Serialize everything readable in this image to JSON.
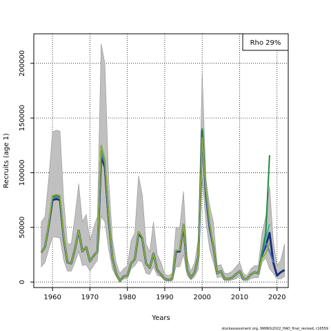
{
  "chart_data": {
    "type": "line",
    "title": "",
    "xlabel": "Years",
    "ylabel": "Recruits (age 1)",
    "xlim": [
      1955,
      2023
    ],
    "ylim": [
      -5000,
      227000
    ],
    "x_ticks": [
      1960,
      1970,
      1980,
      1990,
      2000,
      2010,
      2020
    ],
    "y_ticks": [
      0,
      50000,
      100000,
      150000,
      200000
    ],
    "grid": true,
    "legend": {
      "position": "top-right",
      "entries": [
        "Rho 29%"
      ]
    },
    "footnote": "stockassessment.org, NWWG2022_HAD_final_revised, r16559",
    "colors": {
      "band": "#c0c0c0",
      "band_edge": "#909090",
      "main_line": "#1c2f7a",
      "retro_blue": "#4f77c8",
      "retro_teal": "#3bb79b",
      "retro_green": "#1f8a3a",
      "retro_olive": "#8aaa3c"
    },
    "band": {
      "x": [
        1957,
        1958,
        1959,
        1960,
        1961,
        1962,
        1963,
        1964,
        1965,
        1966,
        1967,
        1968,
        1969,
        1970,
        1971,
        1972,
        1973,
        1974,
        1975,
        1976,
        1977,
        1978,
        1979,
        1980,
        1981,
        1982,
        1983,
        1984,
        1985,
        1986,
        1987,
        1988,
        1989,
        1990,
        1991,
        1992,
        1993,
        1994,
        1995,
        1996,
        1997,
        1998,
        1999,
        2000,
        2001,
        2002,
        2003,
        2004,
        2005,
        2006,
        2007,
        2008,
        2009,
        2010,
        2011,
        2012,
        2013,
        2014,
        2015,
        2016,
        2017,
        2018,
        2019,
        2020,
        2021,
        2022
      ],
      "upper": [
        55000,
        60000,
        95000,
        137000,
        139000,
        138000,
        75000,
        35000,
        35000,
        60000,
        90000,
        55000,
        62000,
        38000,
        50000,
        60000,
        218000,
        200000,
        95000,
        40000,
        18000,
        8000,
        12000,
        15000,
        38000,
        45000,
        97000,
        80000,
        35000,
        28000,
        55000,
        25000,
        18000,
        7000,
        6000,
        8000,
        50000,
        50000,
        83000,
        22000,
        10000,
        18000,
        40000,
        192000,
        95000,
        70000,
        55000,
        15000,
        16000,
        8000,
        8000,
        10000,
        14000,
        18000,
        8000,
        6000,
        12000,
        15000,
        15000,
        45000,
        60000,
        88000,
        38000,
        15000,
        20000,
        35000
      ],
      "lower": [
        14000,
        18000,
        30000,
        41000,
        41000,
        40000,
        20000,
        10000,
        10000,
        18000,
        28000,
        15000,
        16000,
        10000,
        15000,
        20000,
        60000,
        55000,
        30000,
        12000,
        5000,
        0,
        3000,
        3000,
        12000,
        15000,
        20000,
        18000,
        8000,
        7000,
        14000,
        6000,
        5000,
        1000,
        1000,
        1000,
        14000,
        14000,
        25000,
        6000,
        2000,
        5000,
        12000,
        95000,
        55000,
        30000,
        18000,
        4000,
        5000,
        1000,
        1000,
        2000,
        3000,
        5000,
        1000,
        1000,
        3000,
        4000,
        4000,
        18000,
        22000,
        12000,
        8000,
        3000,
        3000,
        5000
      ]
    },
    "series": [
      {
        "x": [
          1957,
          1958,
          1959,
          1960,
          1961,
          1962,
          1963,
          1964,
          1965,
          1966,
          1967,
          1968,
          1969,
          1970,
          1971,
          1972,
          1973,
          1974,
          1975,
          1976,
          1977,
          1978,
          1979,
          1980,
          1981,
          1982,
          1983,
          1984,
          1985,
          1986,
          1987,
          1988,
          1989,
          1990,
          1991,
          1992,
          1993,
          1994,
          1995,
          1996,
          1997,
          1998,
          1999,
          2000,
          2001,
          2002,
          2003,
          2004,
          2005,
          2006,
          2007,
          2008,
          2009,
          2010,
          2011,
          2012,
          2013,
          2014,
          2015,
          2016,
          2017,
          2018,
          2019,
          2020,
          2021,
          2022
        ],
        "values": [
          27000,
          32000,
          52000,
          75000,
          76000,
          75000,
          40000,
          18000,
          17000,
          30000,
          47000,
          28000,
          32000,
          19000,
          24000,
          28000,
          115000,
          105000,
          58000,
          22000,
          8000,
          1000,
          5000,
          6000,
          17000,
          21000,
          45000,
          40000,
          17000,
          13000,
          26000,
          11000,
          7000,
          3000,
          2000,
          3000,
          28000,
          28000,
          52000,
          11000,
          4000,
          9000,
          24000,
          138000,
          80000,
          50000,
          32000,
          8000,
          10000,
          3000,
          3000,
          4000,
          7000,
          10000,
          3000,
          3000,
          7000,
          9000,
          8000,
          25000,
          33000,
          45000,
          18000,
          6000,
          9000,
          11000
        ]
      },
      {
        "x": [
          1957,
          1958,
          1959,
          1960,
          1961,
          1962,
          1963,
          1964,
          1965,
          1966,
          1967,
          1968,
          1969,
          1970,
          1971,
          1972,
          1973,
          1974,
          1975,
          1976,
          1977,
          1978,
          1979,
          1980,
          1981,
          1982,
          1983,
          1984,
          1985,
          1986,
          1987,
          1988,
          1989,
          1990,
          1991,
          1992,
          1993,
          1994,
          1995,
          1996,
          1997,
          1998,
          1999,
          2000,
          2001,
          2002,
          2003,
          2004,
          2005,
          2006,
          2007,
          2008,
          2009,
          2010,
          2011,
          2012,
          2013,
          2014,
          2015,
          2016,
          2017,
          2018,
          2019
        ],
        "values": [
          27000,
          32000,
          53000,
          77000,
          78000,
          77000,
          41000,
          18000,
          17000,
          30000,
          47000,
          28000,
          32000,
          19000,
          24000,
          28000,
          118000,
          108000,
          60000,
          22000,
          8000,
          1000,
          5000,
          6000,
          17000,
          21000,
          46000,
          41000,
          17000,
          13000,
          26000,
          11000,
          7000,
          3000,
          2000,
          3000,
          29000,
          29000,
          53000,
          11000,
          4000,
          9000,
          24000,
          136000,
          82000,
          52000,
          32000,
          8000,
          10000,
          3000,
          3000,
          4000,
          7000,
          10000,
          3000,
          3000,
          7000,
          9000,
          8000,
          26000,
          36000,
          28000,
          18000
        ]
      },
      {
        "x": [
          1957,
          1958,
          1959,
          1960,
          1961,
          1962,
          1963,
          1964,
          1965,
          1966,
          1967,
          1968,
          1969,
          1970,
          1971,
          1972,
          1973,
          1974,
          1975,
          1976,
          1977,
          1978,
          1979,
          1980,
          1981,
          1982,
          1983,
          1984,
          1985,
          1986,
          1987,
          1988,
          1989,
          1990,
          1991,
          1992,
          1993,
          1994,
          1995,
          1996,
          1997,
          1998,
          1999,
          2000,
          2001,
          2002,
          2003,
          2004,
          2005,
          2006,
          2007,
          2008,
          2009,
          2010,
          2011,
          2012,
          2013,
          2014,
          2015,
          2016,
          2017,
          2018
        ],
        "values": [
          27000,
          32000,
          53000,
          78000,
          79000,
          78000,
          41000,
          18000,
          17000,
          30000,
          47000,
          28000,
          32000,
          19000,
          24000,
          28000,
          122000,
          110000,
          60000,
          22000,
          8000,
          1000,
          5000,
          6000,
          17000,
          21000,
          46000,
          41000,
          17000,
          13000,
          26000,
          11000,
          7000,
          3000,
          2000,
          3000,
          29000,
          29000,
          53000,
          11000,
          4000,
          9000,
          24000,
          134000,
          84000,
          53000,
          32000,
          8000,
          10000,
          3000,
          3000,
          4000,
          7000,
          10000,
          3000,
          3000,
          7000,
          9000,
          8000,
          28000,
          40000,
          53000
        ]
      },
      {
        "x": [
          1957,
          1958,
          1959,
          1960,
          1961,
          1962,
          1963,
          1964,
          1965,
          1966,
          1967,
          1968,
          1969,
          1970,
          1971,
          1972,
          1973,
          1974,
          1975,
          1976,
          1977,
          1978,
          1979,
          1980,
          1981,
          1982,
          1983,
          1984,
          1985,
          1986,
          1987,
          1988,
          1989,
          1990,
          1991,
          1992,
          1993,
          1994,
          1995,
          1996,
          1997,
          1998,
          1999,
          2000,
          2001,
          2002,
          2003,
          2004,
          2005,
          2006,
          2007,
          2008,
          2009,
          2010,
          2011,
          2012,
          2013,
          2014,
          2015,
          2016,
          2017,
          2018
        ],
        "values": [
          27000,
          32000,
          53000,
          78000,
          79000,
          78000,
          41000,
          18000,
          17000,
          30000,
          47000,
          28000,
          32000,
          19000,
          24000,
          28000,
          124000,
          111000,
          60000,
          22000,
          8000,
          1000,
          5000,
          6000,
          17000,
          21000,
          46000,
          41000,
          17000,
          13000,
          26000,
          11000,
          7000,
          3000,
          2000,
          3000,
          29000,
          29000,
          53000,
          11000,
          4000,
          9000,
          24000,
          140000,
          86000,
          54000,
          32000,
          8000,
          10000,
          3000,
          3000,
          4000,
          7000,
          10000,
          3000,
          3000,
          7000,
          9000,
          8000,
          27000,
          45000,
          116000
        ]
      },
      {
        "x": [
          1957,
          1958,
          1959,
          1960,
          1961,
          1962,
          1963,
          1964,
          1965,
          1966,
          1967,
          1968,
          1969,
          1970,
          1971,
          1972,
          1973,
          1974,
          1975,
          1976,
          1977,
          1978,
          1979,
          1980,
          1981,
          1982,
          1983,
          1984,
          1985,
          1986,
          1987,
          1988,
          1989,
          1990,
          1991,
          1992,
          1993,
          1994,
          1995,
          1996,
          1997,
          1998,
          1999,
          2000,
          2001,
          2002,
          2003,
          2004,
          2005,
          2006,
          2007,
          2008,
          2009,
          2010,
          2011,
          2012,
          2013,
          2014,
          2015,
          2016,
          2017,
          2018
        ],
        "values": [
          27000,
          32000,
          53000,
          79000,
          80000,
          79000,
          41000,
          18000,
          17000,
          30000,
          47000,
          28000,
          32000,
          19000,
          24000,
          28000,
          125000,
          112000,
          60000,
          22000,
          8000,
          1000,
          5000,
          6000,
          17000,
          21000,
          46000,
          41000,
          17000,
          13000,
          26000,
          11000,
          7000,
          3000,
          2000,
          3000,
          29000,
          29000,
          53000,
          11000,
          4000,
          9000,
          24000,
          132000,
          86000,
          54000,
          32000,
          8000,
          10000,
          3000,
          3000,
          4000,
          7000,
          10000,
          3000,
          3000,
          7000,
          9000,
          8000,
          22000,
          26000,
          36000
        ]
      }
    ]
  }
}
